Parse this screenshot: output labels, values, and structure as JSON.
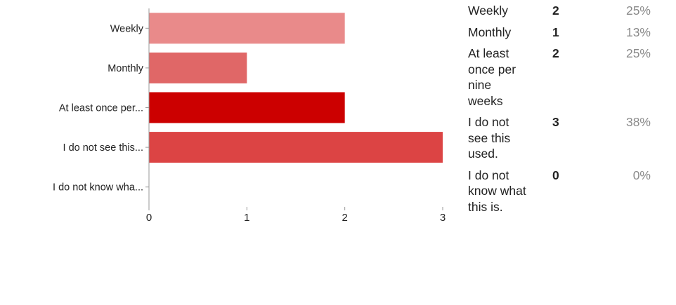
{
  "chart_data": {
    "type": "bar",
    "orientation": "horizontal",
    "categories": [
      "Weekly",
      "Monthly",
      "At least once per...",
      "I do not see this...",
      "I do not know wha..."
    ],
    "values": [
      2,
      1,
      2,
      3,
      0
    ],
    "xlim": [
      0,
      3
    ],
    "x_ticks": [
      "0",
      "1",
      "2",
      "3"
    ],
    "bar_colors": [
      "#e98a8a",
      "#e06767",
      "#cc0000",
      "#dc4444",
      "#ee9999"
    ],
    "grid": false
  },
  "summary": {
    "rows": [
      {
        "label": "Weekly",
        "count": "2",
        "percent": "25%"
      },
      {
        "label": "Monthly",
        "count": "1",
        "percent": "13%"
      },
      {
        "label": "At least once per nine weeks",
        "count": "2",
        "percent": "25%"
      },
      {
        "label": "I do not see this used.",
        "count": "3",
        "percent": "38%"
      },
      {
        "label": "I do not know what this is.",
        "count": "0",
        "percent": "0%"
      }
    ]
  }
}
